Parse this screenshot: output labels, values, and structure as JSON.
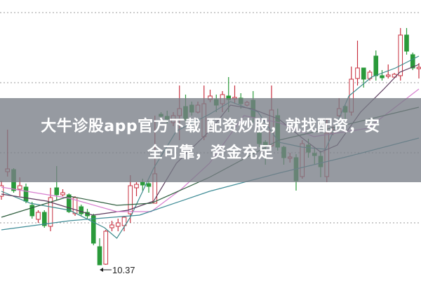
{
  "chart_data": {
    "type": "candlestick",
    "title": "",
    "xlabel": "",
    "ylabel": "",
    "ylim": [
      10.14,
      14.15
    ],
    "grid": true,
    "gridlines": [
      13.97,
      12.97,
      11.97,
      10.97
    ],
    "up_color": "#c8303f",
    "down_color": "#2a9a3a",
    "candles": [
      [
        11.35,
        11.5,
        11.57,
        11.3
      ],
      [
        11.7,
        11.74,
        12.3,
        11.63
      ],
      [
        11.73,
        11.43,
        11.75,
        11.4
      ],
      [
        11.45,
        11.5,
        11.62,
        11.35
      ],
      [
        11.48,
        11.28,
        11.53,
        11.25
      ],
      [
        11.22,
        11.07,
        11.27,
        11.03
      ],
      [
        11.02,
        11.12,
        11.15,
        10.97
      ],
      [
        11.12,
        10.93,
        11.15,
        10.9
      ],
      [
        10.92,
        11.33,
        11.47,
        10.85
      ],
      [
        11.47,
        11.37,
        11.78,
        11.3
      ],
      [
        11.37,
        11.4,
        11.45,
        11.35
      ],
      [
        11.37,
        11.13,
        11.39,
        11.11
      ],
      [
        11.1,
        11.33,
        11.35,
        11.07
      ],
      [
        11.2,
        11.1,
        11.23,
        11.07
      ],
      [
        11.12,
        11.07,
        11.17,
        11.03
      ],
      [
        11.07,
        10.68,
        11.1,
        10.65
      ],
      [
        10.63,
        10.37,
        10.75,
        10.37
      ],
      [
        10.38,
        10.85,
        10.87,
        10.37
      ],
      [
        10.9,
        10.94,
        11.0,
        10.85
      ],
      [
        10.92,
        10.97,
        11.03,
        10.85
      ],
      [
        10.93,
        11.05,
        11.07,
        10.85
      ],
      [
        11.1,
        11.5,
        11.65,
        10.97
      ],
      [
        11.47,
        11.52,
        11.55,
        11.35
      ],
      [
        11.55,
        11.51,
        11.6,
        11.43
      ],
      [
        11.53,
        11.49,
        11.57,
        11.4
      ],
      [
        11.25,
        11.67,
        12.5,
        11.25
      ],
      [
        12.52,
        12.49,
        12.55,
        12.45
      ],
      [
        12.49,
        12.45,
        12.57,
        12.39
      ],
      [
        12.4,
        12.5,
        12.55,
        12.35
      ],
      [
        12.5,
        12.6,
        12.93,
        12.15
      ],
      [
        12.63,
        12.45,
        12.8,
        12.4
      ],
      [
        12.65,
        12.55,
        12.7,
        12.5
      ],
      [
        12.55,
        12.65,
        12.7,
        12.53
      ],
      [
        12.2,
        12.67,
        12.93,
        12.15
      ],
      [
        12.73,
        12.78,
        12.87,
        12.69
      ],
      [
        12.73,
        12.65,
        12.8,
        12.55
      ],
      [
        12.67,
        12.8,
        12.85,
        12.55
      ],
      [
        12.78,
        12.73,
        13.05,
        12.55
      ],
      [
        12.74,
        12.76,
        12.93,
        12.67
      ],
      [
        12.75,
        12.67,
        12.82,
        12.6
      ],
      [
        12.65,
        12.69,
        12.71,
        12.63
      ],
      [
        12.72,
        12.48,
        12.85,
        12.4
      ],
      [
        12.25,
        12.1,
        12.3,
        12.05
      ],
      [
        12.12,
        12.08,
        12.15,
        11.8
      ],
      [
        12.07,
        12.58,
        12.93,
        12.05
      ],
      [
        12.5,
        12.05,
        12.6,
        12.0
      ],
      [
        12.05,
        11.9,
        12.07,
        11.8
      ],
      [
        11.89,
        11.91,
        11.97,
        11.83
      ],
      [
        11.9,
        11.57,
        11.95,
        11.43
      ],
      [
        11.63,
        12.1,
        12.15,
        11.6
      ],
      [
        12.08,
        11.98,
        12.17,
        11.9
      ],
      [
        11.96,
        11.93,
        12.05,
        11.8
      ],
      [
        11.92,
        11.77,
        12.0,
        11.62
      ],
      [
        11.63,
        12.25,
        12.45,
        11.55
      ],
      [
        12.25,
        12.3,
        12.35,
        12.22
      ],
      [
        12.5,
        12.6,
        12.75,
        12.48
      ],
      [
        12.63,
        12.55,
        12.65,
        12.45
      ],
      [
        12.55,
        13.02,
        13.2,
        12.5
      ],
      [
        13.03,
        13.18,
        13.57,
        12.93
      ],
      [
        13.18,
        13.02,
        13.18,
        12.9
      ],
      [
        13.03,
        13.12,
        13.15,
        13.0
      ],
      [
        13.35,
        13.07,
        13.43,
        13.0
      ],
      [
        13.07,
        13.04,
        13.15,
        13.0
      ],
      [
        13.06,
        13.08,
        13.23,
        13.03
      ],
      [
        13.05,
        13.09,
        13.11,
        13.03
      ],
      [
        13.07,
        13.65,
        13.75,
        13.0
      ],
      [
        13.65,
        13.42,
        13.75,
        13.37
      ],
      [
        13.37,
        13.18,
        13.4,
        13.15
      ],
      [
        13.17,
        13.19,
        13.25,
        13.03
      ]
    ],
    "candle_fields": [
      "open",
      "close",
      "high",
      "low"
    ],
    "moving_averages": [
      {
        "color": "#3c8a8c",
        "points": [
          [
            0,
            11.42
          ],
          [
            4.7,
            11.25
          ],
          [
            11.1,
            11.15
          ],
          [
            16.8,
            10.9
          ],
          [
            18.8,
            10.75
          ],
          [
            21,
            11.05
          ],
          [
            24.8,
            11.75
          ],
          [
            28.5,
            12.28
          ],
          [
            33.9,
            12.52
          ],
          [
            37.3,
            12.7
          ],
          [
            41.8,
            12.55
          ],
          [
            45.2,
            12.12
          ],
          [
            49,
            12.05
          ],
          [
            52.8,
            12.02
          ],
          [
            56.6,
            12.78
          ],
          [
            60.3,
            13.05
          ],
          [
            64.2,
            13.18
          ],
          [
            68,
            13.35
          ]
        ]
      },
      {
        "color": "#5a3a5c",
        "points": [
          [
            0,
            11.38
          ],
          [
            7.4,
            11.28
          ],
          [
            14.9,
            11.08
          ],
          [
            20.6,
            11.15
          ],
          [
            24.8,
            11.28
          ],
          [
            28.5,
            11.82
          ],
          [
            33.9,
            12.28
          ],
          [
            37.3,
            12.65
          ],
          [
            40.7,
            12.6
          ],
          [
            45.2,
            12.45
          ],
          [
            49,
            12.18
          ],
          [
            52,
            11.98
          ],
          [
            54.7,
            12.08
          ],
          [
            58.5,
            12.55
          ],
          [
            62.3,
            12.88
          ],
          [
            64.9,
            13.12
          ],
          [
            68,
            13.23
          ]
        ]
      },
      {
        "color": "#d77fcf",
        "points": [
          [
            0,
            11.48
          ],
          [
            5.5,
            11.4
          ],
          [
            11.1,
            11.32
          ],
          [
            18.8,
            11.13
          ],
          [
            24.4,
            11.13
          ],
          [
            29.3,
            11.45
          ],
          [
            33.9,
            11.82
          ],
          [
            39.5,
            12.5
          ],
          [
            45.2,
            12.4
          ],
          [
            50.9,
            12.2
          ],
          [
            59.7,
            12.32
          ],
          [
            68,
            12.88
          ]
        ]
      },
      {
        "color": "#2f5e3e",
        "points": [
          [
            0,
            11.05
          ],
          [
            11.1,
            11.35
          ],
          [
            18.8,
            11.22
          ],
          [
            24.4,
            11.25
          ],
          [
            33.9,
            11.62
          ],
          [
            45.2,
            12.15
          ],
          [
            56.6,
            12.38
          ],
          [
            68,
            12.62
          ]
        ]
      },
      {
        "color": "#3f8c96",
        "points": [
          [
            0,
            10.87
          ],
          [
            11.1,
            11.0
          ],
          [
            22.5,
            11.08
          ],
          [
            33.9,
            11.42
          ],
          [
            45.2,
            11.68
          ],
          [
            56.6,
            11.92
          ],
          [
            68,
            12.18
          ]
        ]
      }
    ],
    "annotations": [
      {
        "text": "10.37",
        "candle": 16,
        "price": 10.37
      }
    ]
  },
  "banner": {
    "line1": "大牛诊股app官方下载 配资炒股，就找配资，安",
    "line2": "全可靠，资金充足"
  }
}
